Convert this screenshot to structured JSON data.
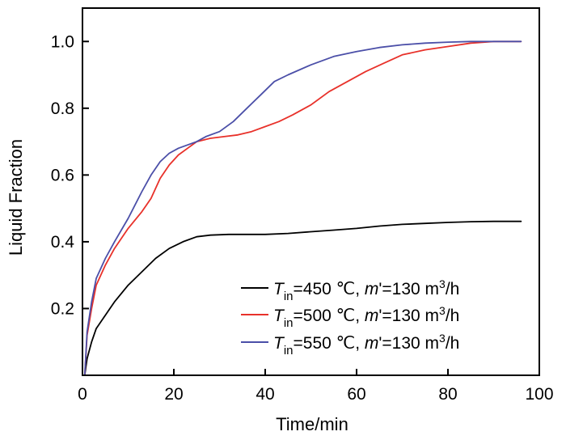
{
  "chart_data": {
    "type": "line",
    "xlabel": "Time/min",
    "ylabel": "Liquid Fraction",
    "xlim": [
      0,
      100
    ],
    "ylim": [
      0,
      1.1
    ],
    "xticks": [
      0,
      20,
      40,
      60,
      80,
      100
    ],
    "yticks": [
      0.2,
      0.4,
      0.6,
      0.8,
      1.0
    ],
    "xtick_labels": [
      "0",
      "20",
      "40",
      "60",
      "80",
      "100"
    ],
    "ytick_labels": [
      "0.2",
      "0.4",
      "0.6",
      "0.8",
      "1.0"
    ],
    "grid": false,
    "legend_position": "bottom-right",
    "series": [
      {
        "name": "Tin=450 ℃, m'=130 m3/h",
        "legend": {
          "sym": "T",
          "sub": "in",
          "cond": "=450 ℃, ",
          "msym": "m",
          "mid": "'=130 m",
          "sup": "3",
          "tail": "/h"
        },
        "color": "#000000",
        "x": [
          0.5,
          1,
          2,
          3,
          5,
          7,
          10,
          13,
          16,
          19,
          22,
          25,
          28,
          32,
          36,
          40,
          45,
          50,
          55,
          60,
          65,
          70,
          75,
          80,
          85,
          90,
          96
        ],
        "y": [
          0.0,
          0.05,
          0.1,
          0.14,
          0.18,
          0.22,
          0.27,
          0.31,
          0.35,
          0.38,
          0.4,
          0.415,
          0.42,
          0.422,
          0.422,
          0.422,
          0.425,
          0.43,
          0.435,
          0.44,
          0.447,
          0.452,
          0.455,
          0.458,
          0.46,
          0.461,
          0.461
        ]
      },
      {
        "name": "Tin=500 ℃, m'=130 m3/h",
        "legend": {
          "sym": "T",
          "sub": "in",
          "cond": "=500 ℃, ",
          "msym": "m",
          "mid": "'=130 m",
          "sup": "3",
          "tail": "/h"
        },
        "color": "#e8312a",
        "x": [
          0.5,
          1,
          2,
          3,
          5,
          7,
          10,
          13,
          15,
          17,
          19,
          21,
          23,
          25,
          28,
          31,
          34,
          37,
          40,
          43,
          46,
          50,
          54,
          58,
          62,
          66,
          70,
          75,
          80,
          85,
          90,
          96
        ],
        "y": [
          0.0,
          0.12,
          0.2,
          0.27,
          0.33,
          0.38,
          0.44,
          0.49,
          0.53,
          0.59,
          0.63,
          0.66,
          0.68,
          0.7,
          0.71,
          0.715,
          0.72,
          0.73,
          0.745,
          0.76,
          0.78,
          0.81,
          0.85,
          0.88,
          0.91,
          0.935,
          0.96,
          0.975,
          0.985,
          0.995,
          1.0,
          1.0
        ]
      },
      {
        "name": "Tin=550 ℃, m'=130 m3/h",
        "legend": {
          "sym": "T",
          "sub": "in",
          "cond": "=550 ℃, ",
          "msym": "m",
          "mid": "'=130 m",
          "sup": "3",
          "tail": "/h"
        },
        "color": "#4b4fa8",
        "x": [
          0.5,
          1,
          2,
          3,
          5,
          7,
          10,
          13,
          15,
          17,
          19,
          21,
          23,
          25,
          27,
          30,
          33,
          36,
          39,
          42,
          45,
          50,
          55,
          60,
          65,
          70,
          75,
          80,
          85,
          90,
          96
        ],
        "y": [
          0.0,
          0.13,
          0.22,
          0.29,
          0.35,
          0.4,
          0.47,
          0.55,
          0.6,
          0.64,
          0.665,
          0.68,
          0.69,
          0.7,
          0.715,
          0.73,
          0.76,
          0.8,
          0.84,
          0.88,
          0.9,
          0.93,
          0.955,
          0.97,
          0.982,
          0.99,
          0.995,
          0.998,
          1.0,
          1.0,
          1.0
        ]
      }
    ]
  }
}
